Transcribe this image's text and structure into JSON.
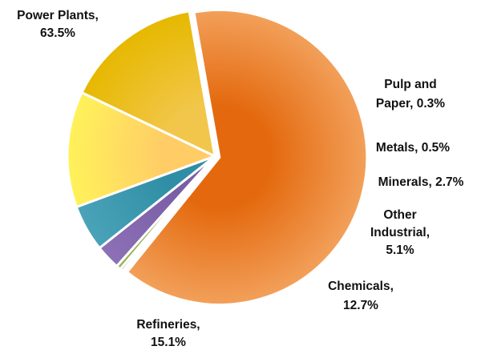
{
  "chart_data": {
    "type": "pie",
    "title": "",
    "legend": "none",
    "unit": "%",
    "slices": [
      {
        "label": "Power Plants",
        "value": 63.5,
        "text": "Power Plants, 63.5%",
        "lines": [
          "Power Plants,",
          "63.5%"
        ],
        "color_inner": "#e4690e",
        "color_outer": "#f2a05a"
      },
      {
        "label": "Pulp and Paper",
        "value": 0.3,
        "text": "Pulp and Paper, 0.3%",
        "lines": [
          "Pulp and",
          "Paper, 0.3%"
        ],
        "color_inner": "#9a5a34",
        "color_outer": "#b06a40"
      },
      {
        "label": "Metals",
        "value": 0.5,
        "text": "Metals, 0.5%",
        "lines": [
          "Metals, 0.5%"
        ],
        "color_inner": "#7c9a3c",
        "color_outer": "#9ab655"
      },
      {
        "label": "Minerals",
        "value": 2.7,
        "text": "Minerals, 2.7%",
        "lines": [
          "Minerals, 2.7%"
        ],
        "color_inner": "#7a5ea6",
        "color_outer": "#8d70b6"
      },
      {
        "label": "Other Industrial",
        "value": 5.1,
        "text": "Other Industrial, 5.1%",
        "lines": [
          "Other",
          "Industrial,",
          "5.1%"
        ],
        "color_inner": "#2f8ea5",
        "color_outer": "#4aa3b8"
      },
      {
        "label": "Chemicals",
        "value": 12.7,
        "text": "Chemicals, 12.7%",
        "lines": [
          "Chemicals,",
          "12.7%"
        ],
        "color_inner": "#ffcc66",
        "color_outer": "#fff25a"
      },
      {
        "label": "Refineries",
        "value": 15.1,
        "text": "Refineries, 15.1%",
        "lines": [
          "Refineries,",
          "15.1%"
        ],
        "color_inner": "#f2c64a",
        "color_outer": "#e6b800"
      }
    ]
  }
}
